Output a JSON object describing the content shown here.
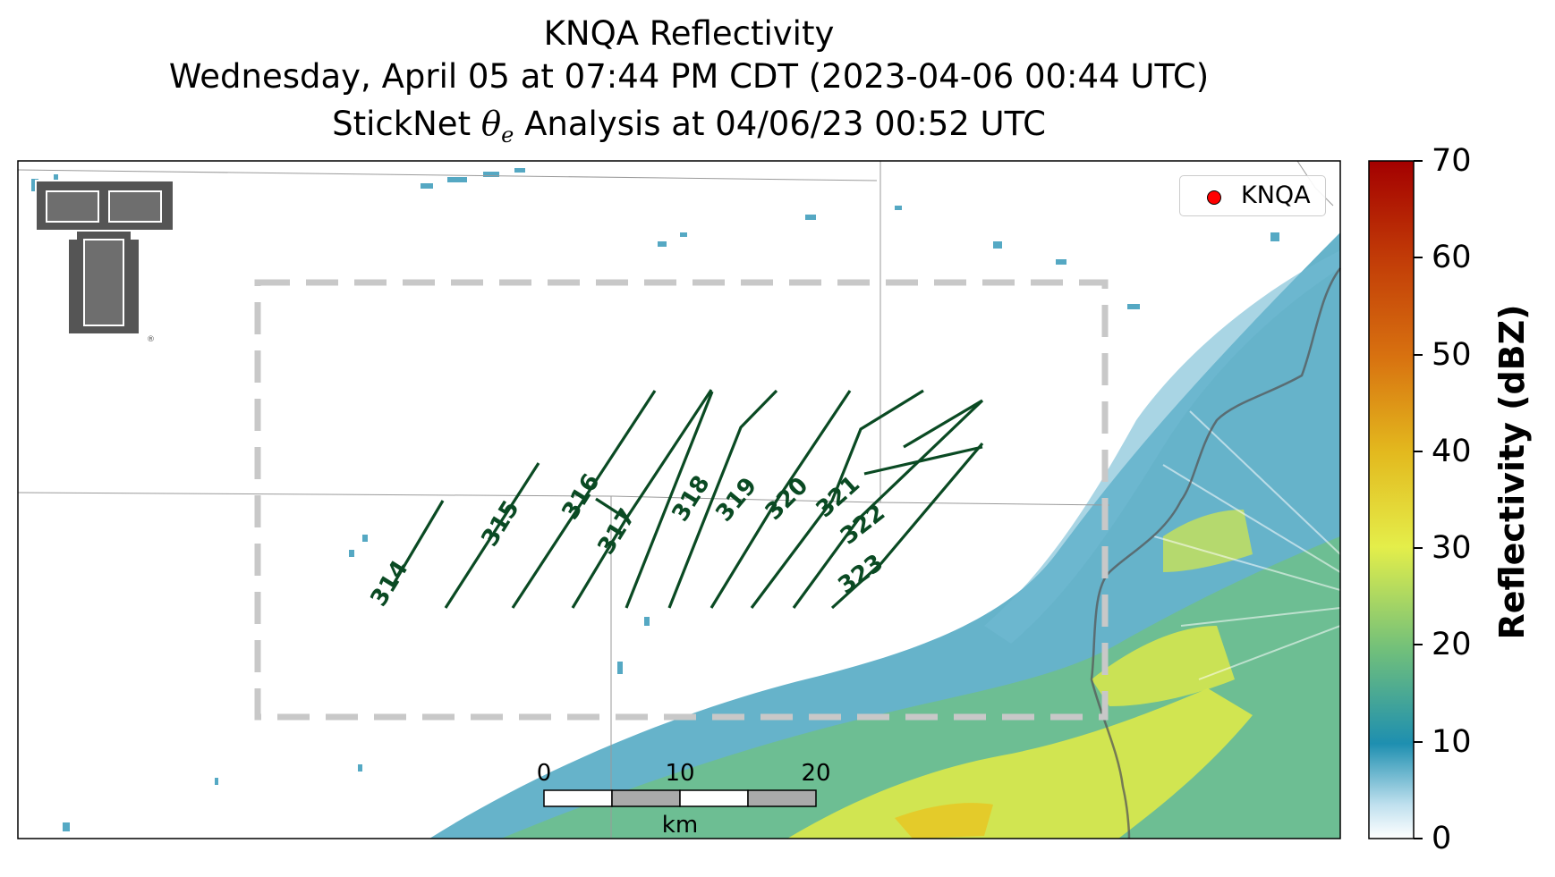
{
  "title": {
    "line1": "KNQA Reflectivity",
    "line2": "Wednesday, April 05 at 07:44 PM CDT (2023-04-06 00:44 UTC)",
    "line3_prefix": "StickNet ",
    "line3_theta": "θ",
    "line3_sub": "e",
    "line3_suffix": " Analysis at 04/06/23 00:52 UTC"
  },
  "legend": {
    "label": "KNQA",
    "marker_color": "#ff0000"
  },
  "colorbar": {
    "label": "Reflectivity (dBZ)",
    "ticks": [
      "0",
      "10",
      "20",
      "30",
      "40",
      "50",
      "60",
      "70"
    ],
    "range": [
      0,
      70
    ],
    "colors": [
      "#ffffff",
      "#1e8fb0",
      "#72c07a",
      "#e4ee4a",
      "#e3b91e",
      "#d87210",
      "#c13a07",
      "#a30000"
    ]
  },
  "contours": {
    "variable": "theta_e",
    "color": "#0a4a23",
    "labels": [
      "314",
      "315",
      "316",
      "317",
      "318",
      "319",
      "320",
      "321",
      "322",
      "323"
    ]
  },
  "scalebar": {
    "labels": [
      "0",
      "10",
      "20"
    ],
    "unit": "km"
  },
  "logo": {
    "name": "Texas Tech Double T",
    "color": "#555555"
  },
  "analysis_box": {
    "style": "dashed",
    "color": "#c8c8c8"
  }
}
